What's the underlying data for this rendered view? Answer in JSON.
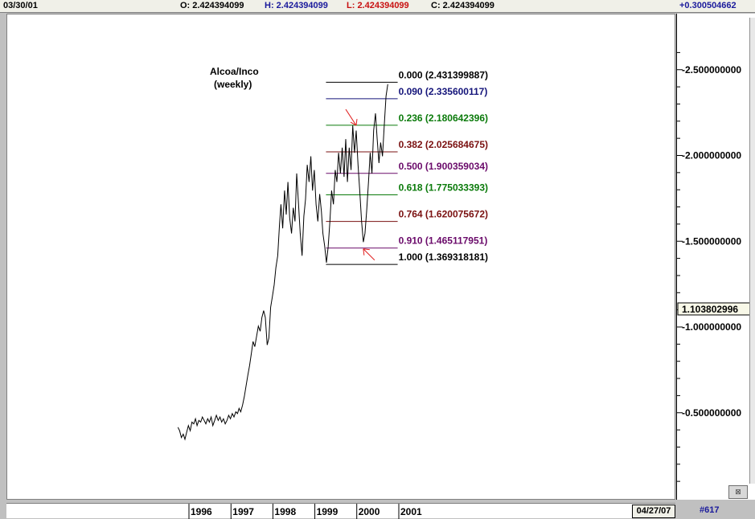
{
  "header": {
    "date": "03/30/01",
    "open": "O: 2.424394099",
    "high": "H: 2.424394099",
    "low": "L: 2.424394099",
    "close": "C: 2.424394099",
    "change": "+0.300504662"
  },
  "footer": {
    "date_box": "04/27/07",
    "page_number": "#617"
  },
  "colors": {
    "high": "#1a1a9c",
    "low": "#c81010",
    "change": "#1a1a9c",
    "fib_black": "#000000",
    "fib_navy": "#14147a",
    "fib_green": "#0a7a0a",
    "fib_maroon": "#7a1010",
    "fib_purple": "#6a0a6a",
    "arrows": "#e02020"
  },
  "chart_data": {
    "type": "line",
    "title": "Alcoa/Inco",
    "subtitle": "(weekly)",
    "x_axis": {
      "type": "date",
      "range": [
        "1995-05-01",
        "2001-03-30"
      ],
      "tick_labels": [
        "1996",
        "1997",
        "1998",
        "1999",
        "2000",
        "2001"
      ]
    },
    "y_axis": {
      "range": [
        0.0,
        2.6
      ],
      "side": "right",
      "tick_values": [
        0.5,
        1.0,
        1.5,
        2.0,
        2.5
      ],
      "tick_labels": [
        "0.500000000",
        "1.000000000",
        "1.500000000",
        "2.000000000",
        "2.500000000"
      ]
    },
    "current_value": "1.103802996",
    "series": [
      {
        "values": [
          [
            "1995-09-20",
            0.42
          ],
          [
            "1995-10-05",
            0.4
          ],
          [
            "1995-10-20",
            0.36
          ],
          [
            "1995-11-05",
            0.38
          ],
          [
            "1995-11-20",
            0.35
          ],
          [
            "1995-12-05",
            0.39
          ],
          [
            "1995-12-20",
            0.43
          ],
          [
            "1996-01-05",
            0.4
          ],
          [
            "1996-01-20",
            0.45
          ],
          [
            "1996-02-05",
            0.44
          ],
          [
            "1996-02-20",
            0.47
          ],
          [
            "1996-03-05",
            0.43
          ],
          [
            "1996-03-20",
            0.46
          ],
          [
            "1996-04-05",
            0.45
          ],
          [
            "1996-04-20",
            0.48
          ],
          [
            "1996-05-05",
            0.46
          ],
          [
            "1996-05-20",
            0.44
          ],
          [
            "1996-06-05",
            0.47
          ],
          [
            "1996-06-20",
            0.45
          ],
          [
            "1996-07-05",
            0.48
          ],
          [
            "1996-07-20",
            0.43
          ],
          [
            "1996-08-05",
            0.46
          ],
          [
            "1996-08-20",
            0.49
          ],
          [
            "1996-09-05",
            0.46
          ],
          [
            "1996-09-20",
            0.48
          ],
          [
            "1996-10-05",
            0.45
          ],
          [
            "1996-10-20",
            0.47
          ],
          [
            "1996-11-05",
            0.44
          ],
          [
            "1996-11-20",
            0.46
          ],
          [
            "1996-12-05",
            0.49
          ],
          [
            "1996-12-20",
            0.47
          ],
          [
            "1997-01-05",
            0.5
          ],
          [
            "1997-01-20",
            0.48
          ],
          [
            "1997-02-05",
            0.51
          ],
          [
            "1997-02-20",
            0.5
          ],
          [
            "1997-03-05",
            0.53
          ],
          [
            "1997-03-20",
            0.51
          ],
          [
            "1997-04-05",
            0.55
          ],
          [
            "1997-04-20",
            0.6
          ],
          [
            "1997-05-05",
            0.66
          ],
          [
            "1997-05-20",
            0.72
          ],
          [
            "1997-06-05",
            0.78
          ],
          [
            "1997-06-20",
            0.85
          ],
          [
            "1997-07-05",
            0.92
          ],
          [
            "1997-07-20",
            0.89
          ],
          [
            "1997-08-05",
            0.95
          ],
          [
            "1997-08-20",
            1.01
          ],
          [
            "1997-09-05",
            0.98
          ],
          [
            "1997-09-20",
            1.06
          ],
          [
            "1997-10-05",
            1.1
          ],
          [
            "1997-10-20",
            1.06
          ],
          [
            "1997-11-05",
            0.9
          ],
          [
            "1997-11-20",
            0.94
          ],
          [
            "1997-12-05",
            1.12
          ],
          [
            "1997-12-20",
            1.18
          ],
          [
            "1998-01-05",
            1.25
          ],
          [
            "1998-01-20",
            1.35
          ],
          [
            "1998-02-05",
            1.42
          ],
          [
            "1998-02-20",
            1.6
          ],
          [
            "1998-03-05",
            1.72
          ],
          [
            "1998-03-20",
            1.58
          ],
          [
            "1998-04-05",
            1.8
          ],
          [
            "1998-04-20",
            1.66
          ],
          [
            "1998-05-05",
            1.85
          ],
          [
            "1998-05-20",
            1.64
          ],
          [
            "1998-06-05",
            1.55
          ],
          [
            "1998-06-20",
            1.7
          ],
          [
            "1998-07-05",
            1.62
          ],
          [
            "1998-07-20",
            1.9
          ],
          [
            "1998-08-05",
            1.72
          ],
          [
            "1998-08-20",
            1.55
          ],
          [
            "1998-09-05",
            1.42
          ],
          [
            "1998-09-20",
            1.65
          ],
          [
            "1998-10-05",
            1.75
          ],
          [
            "1998-10-20",
            1.95
          ],
          [
            "1998-11-05",
            1.85
          ],
          [
            "1998-11-20",
            2.0
          ],
          [
            "1998-12-05",
            1.8
          ],
          [
            "1998-12-20",
            1.92
          ],
          [
            "1999-01-05",
            1.72
          ],
          [
            "1999-01-20",
            1.62
          ],
          [
            "1999-02-05",
            1.78
          ],
          [
            "1999-02-20",
            1.68
          ],
          [
            "1999-03-05",
            1.55
          ],
          [
            "1999-03-20",
            1.48
          ],
          [
            "1999-04-05",
            1.38
          ],
          [
            "1999-04-20",
            1.47
          ],
          [
            "1999-05-05",
            1.62
          ],
          [
            "1999-05-20",
            1.8
          ],
          [
            "1999-06-05",
            1.72
          ],
          [
            "1999-06-20",
            1.92
          ],
          [
            "1999-07-05",
            1.85
          ],
          [
            "1999-07-20",
            2.02
          ],
          [
            "1999-08-05",
            1.9
          ],
          [
            "1999-08-20",
            2.05
          ],
          [
            "1999-09-05",
            1.88
          ],
          [
            "1999-09-20",
            2.1
          ],
          [
            "1999-10-05",
            1.85
          ],
          [
            "1999-10-20",
            2.05
          ],
          [
            "1999-11-05",
            1.92
          ],
          [
            "1999-11-20",
            2.18
          ],
          [
            "1999-12-05",
            2.02
          ],
          [
            "1999-12-20",
            2.15
          ],
          [
            "2000-01-05",
            1.95
          ],
          [
            "2000-01-20",
            1.8
          ],
          [
            "2000-02-05",
            1.62
          ],
          [
            "2000-02-20",
            1.5
          ],
          [
            "2000-03-05",
            1.55
          ],
          [
            "2000-03-20",
            1.68
          ],
          [
            "2000-04-05",
            1.85
          ],
          [
            "2000-04-20",
            2.02
          ],
          [
            "2000-05-05",
            1.9
          ],
          [
            "2000-05-20",
            2.15
          ],
          [
            "2000-06-05",
            2.25
          ],
          [
            "2000-06-20",
            2.1
          ],
          [
            "2000-07-05",
            1.96
          ],
          [
            "2000-07-20",
            2.08
          ],
          [
            "2000-08-05",
            2.0
          ],
          [
            "2000-08-20",
            2.18
          ],
          [
            "2000-09-05",
            2.35
          ],
          [
            "2000-09-20",
            2.42
          ]
        ]
      }
    ],
    "fibonacci_levels": [
      {
        "ratio": "0.000",
        "value": 2.431399887,
        "label": "0.000 (2.431399887)",
        "color": "#000000"
      },
      {
        "ratio": "0.090",
        "value": 2.335600117,
        "label": "0.090 (2.335600117)",
        "color": "#14147a"
      },
      {
        "ratio": "0.236",
        "value": 2.180642396,
        "label": "0.236 (2.180642396)",
        "color": "#0a7a0a"
      },
      {
        "ratio": "0.382",
        "value": 2.025684675,
        "label": "0.382 (2.025684675)",
        "color": "#7a1010"
      },
      {
        "ratio": "0.500",
        "value": 1.900359034,
        "label": "0.500 (1.900359034)",
        "color": "#6a0a6a"
      },
      {
        "ratio": "0.618",
        "value": 1.775033393,
        "label": "0.618 (1.775033393)",
        "color": "#0a7a0a"
      },
      {
        "ratio": "0.764",
        "value": 1.620075672,
        "label": "0.764 (1.620075672)",
        "color": "#7a1010"
      },
      {
        "ratio": "0.910",
        "value": 1.465117951,
        "label": "0.910 (1.465117951)",
        "color": "#6a0a6a"
      },
      {
        "ratio": "1.000",
        "value": 1.369318181,
        "label": "1.000 (1.369318181)",
        "color": "#000000"
      }
    ],
    "fib_x_start": "1999-04-01",
    "fib_x_end": "2000-12-15",
    "arrows": [
      {
        "at": [
          "1999-12-20",
          2.18
        ],
        "direction": "down-right"
      },
      {
        "at": [
          "2000-02-20",
          1.46
        ],
        "direction": "up-left"
      }
    ],
    "grid": false,
    "legend": "none"
  }
}
